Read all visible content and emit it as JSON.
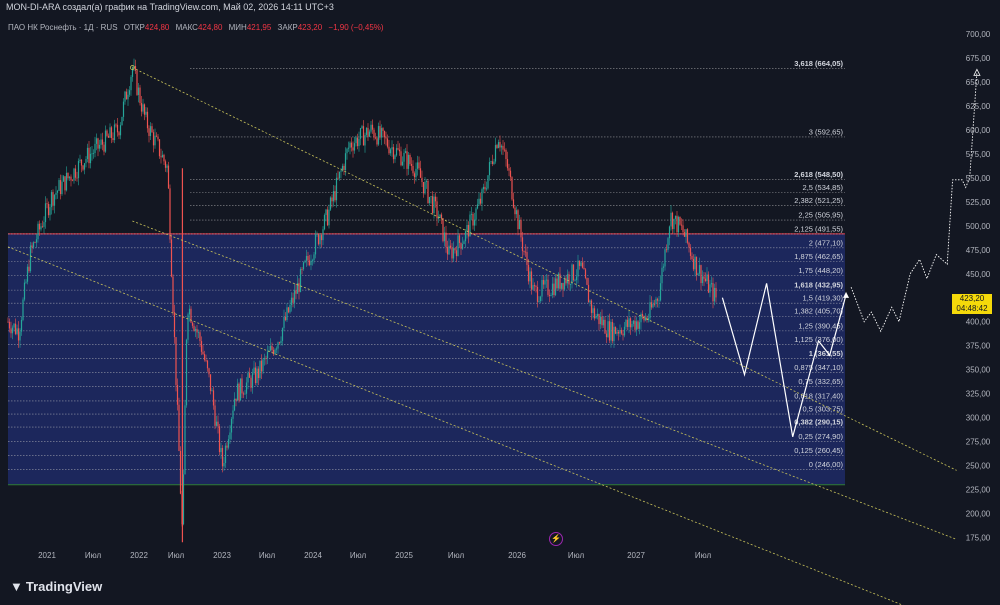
{
  "header": {
    "title": "MON-DI-ARA создал(а) график на TradingView.com, Май 02, 2026 14:11 UTC+3"
  },
  "legend": {
    "symbol": "ПАО НК Роснефть · 1Д · RUS",
    "open_label": "ОТКР",
    "open_value": "424,80",
    "high_label": "МАКС",
    "high_value": "424,80",
    "low_label": "МИН",
    "low_value": "421,95",
    "close_label": "ЗАКР",
    "close_value": "423,20",
    "change": "−1,90 (−0,45%)"
  },
  "price_tag": {
    "price": "423,20",
    "countdown": "04:48:42"
  },
  "footer": {
    "logo_text": "TradingView",
    "logo_icon": "tradingview-logo-icon"
  },
  "colors": {
    "background": "#131722",
    "fib_zone": "#1e2a66",
    "up": "#26a69a",
    "down": "#ef5350",
    "channel": "#c9c35a",
    "projection": "#ffffff",
    "price_tag": "#f5d90a",
    "top_line": "#f23645",
    "bottom_line": "#2e7d32"
  },
  "chart_data": {
    "type": "candlestick",
    "title": "ПАО НК Роснефть · 1Д · RUS",
    "y_axis": {
      "ylim": [
        170,
        710
      ],
      "ticks": [
        "175,00",
        "200,00",
        "225,00",
        "250,00",
        "275,00",
        "300,00",
        "325,00",
        "350,00",
        "375,00",
        "400,00",
        "425,00",
        "450,00",
        "475,00",
        "500,00",
        "525,00",
        "550,00",
        "575,00",
        "600,00",
        "625,00",
        "650,00",
        "675,00",
        "700,00"
      ]
    },
    "x_axis": {
      "ticks": [
        "2021",
        "Июл",
        "2022",
        "Июл",
        "2023",
        "Июл",
        "2024",
        "Июл",
        "2025",
        "Июл",
        "2026",
        "Июл",
        "2027",
        "Июл"
      ]
    },
    "grid": false,
    "price_path": [
      [
        "2020-11-01",
        400
      ],
      [
        "2020-12-01",
        390
      ],
      [
        "2021-01-01",
        470
      ],
      [
        "2021-03-01",
        530
      ],
      [
        "2021-06-01",
        570
      ],
      [
        "2021-09-01",
        600
      ],
      [
        "2021-10-10",
        665
      ],
      [
        "2021-11-15",
        610
      ],
      [
        "2022-01-15",
        560
      ],
      [
        "2022-02-25",
        175
      ],
      [
        "2022-03-10",
        420
      ],
      [
        "2022-04-15",
        380
      ],
      [
        "2022-05-15",
        330
      ],
      [
        "2022-06-15",
        250
      ],
      [
        "2022-07-20",
        325
      ],
      [
        "2022-09-20",
        345
      ],
      [
        "2022-11-20",
        385
      ],
      [
        "2023-02-01",
        460
      ],
      [
        "2023-04-01",
        510
      ],
      [
        "2023-06-01",
        585
      ],
      [
        "2023-08-01",
        600
      ],
      [
        "2023-10-01",
        580
      ],
      [
        "2023-12-01",
        560
      ],
      [
        "2024-02-01",
        510
      ],
      [
        "2024-03-01",
        470
      ],
      [
        "2024-04-15",
        490
      ],
      [
        "2024-06-01",
        530
      ],
      [
        "2024-07-15",
        595
      ],
      [
        "2024-08-10",
        560
      ],
      [
        "2024-09-20",
        480
      ],
      [
        "2024-10-20",
        430
      ],
      [
        "2024-12-01",
        435
      ],
      [
        "2025-01-15",
        445
      ],
      [
        "2025-03-01",
        455
      ],
      [
        "2025-04-01",
        410
      ],
      [
        "2025-05-20",
        390
      ],
      [
        "2025-07-01",
        395
      ],
      [
        "2025-09-01",
        405
      ],
      [
        "2025-10-01",
        430
      ],
      [
        "2025-11-01",
        510
      ],
      [
        "2025-12-05",
        495
      ],
      [
        "2026-01-10",
        460
      ],
      [
        "2026-02-10",
        440
      ],
      [
        "2026-03-10",
        423
      ]
    ],
    "current_price": 423.2,
    "fibonacci_extension": {
      "levels": [
        {
          "ratio": "0",
          "price": 246.0,
          "label": "0 (246,00)",
          "bold": false
        },
        {
          "ratio": "0,125",
          "price": 260.45,
          "label": "0,125 (260,45)",
          "bold": false
        },
        {
          "ratio": "0,25",
          "price": 274.9,
          "label": "0,25 (274,90)",
          "bold": false
        },
        {
          "ratio": "0,382",
          "price": 290.15,
          "label": "0,382 (290,15)",
          "bold": true
        },
        {
          "ratio": "0,5",
          "price": 303.75,
          "label": "0,5 (303,75)",
          "bold": false
        },
        {
          "ratio": "0,618",
          "price": 317.4,
          "label": "0,618 (317,40)",
          "bold": false
        },
        {
          "ratio": "0,75",
          "price": 332.65,
          "label": "0,75 (332,65)",
          "bold": false
        },
        {
          "ratio": "0,875",
          "price": 347.1,
          "label": "0,875 (347,10)",
          "bold": false
        },
        {
          "ratio": "1",
          "price": 361.55,
          "label": "1 (361,55)",
          "bold": true
        },
        {
          "ratio": "1,125",
          "price": 376.0,
          "label": "1,125 (376,00)",
          "bold": false
        },
        {
          "ratio": "1,25",
          "price": 390.45,
          "label": "1,25 (390,45)",
          "bold": false
        },
        {
          "ratio": "1,382",
          "price": 405.7,
          "label": "1,382 (405,70)",
          "bold": false
        },
        {
          "ratio": "1,5",
          "price": 419.3,
          "label": "1,5 (419,30)",
          "bold": false
        },
        {
          "ratio": "1,618",
          "price": 432.95,
          "label": "1,618 (432,95)",
          "bold": true
        },
        {
          "ratio": "1,75",
          "price": 448.2,
          "label": "1,75 (448,20)",
          "bold": false
        },
        {
          "ratio": "1,875",
          "price": 462.65,
          "label": "1,875 (462,65)",
          "bold": false
        },
        {
          "ratio": "2",
          "price": 477.1,
          "label": "2 (477,10)",
          "bold": false
        },
        {
          "ratio": "2,125",
          "price": 491.55,
          "label": "2,125 (491,55)",
          "bold": false
        },
        {
          "ratio": "2,25",
          "price": 505.95,
          "label": "2,25 (505,95)",
          "bold": false
        },
        {
          "ratio": "2,382",
          "price": 521.25,
          "label": "2,382 (521,25)",
          "bold": false
        },
        {
          "ratio": "2,5",
          "price": 534.85,
          "label": "2,5 (534,85)",
          "bold": false
        },
        {
          "ratio": "2,618",
          "price": 548.5,
          "label": "2,618 (548,50)",
          "bold": true
        },
        {
          "ratio": "3",
          "price": 592.65,
          "label": "3 (592,65)",
          "bold": false
        },
        {
          "ratio": "3,618",
          "price": 664.05,
          "label": "3,618 (664,05)",
          "bold": true
        }
      ],
      "zone_top_price": 491.55,
      "zone_bottom_price": 230
    },
    "channel_lines": [
      {
        "from": [
          "2021-10-10",
          665
        ],
        "to": [
          "2027-12-31",
          245
        ]
      },
      {
        "from": [
          "2021-10-10",
          505
        ],
        "to": [
          "2027-12-31",
          173
        ]
      },
      {
        "from": [
          "2020-11-01",
          478
        ],
        "to": [
          "2027-12-31",
          82
        ]
      }
    ],
    "projection_solid": [
      [
        "2026-03-25",
        425
      ],
      [
        "2026-05-25",
        345
      ],
      [
        "2026-07-25",
        440
      ],
      [
        "2026-10-05",
        280
      ],
      [
        "2026-12-15",
        380
      ],
      [
        "2027-01-15",
        365
      ],
      [
        "2027-03-01",
        428
      ]
    ],
    "projection_dotted": [
      [
        "2027-03-15",
        436
      ],
      [
        "2027-04-20",
        400
      ],
      [
        "2027-05-10",
        410
      ],
      [
        "2027-06-05",
        390
      ],
      [
        "2027-07-05",
        415
      ],
      [
        "2027-07-25",
        400
      ],
      [
        "2027-08-25",
        450
      ],
      [
        "2027-09-20",
        465
      ],
      [
        "2027-10-10",
        445
      ],
      [
        "2027-11-05",
        470
      ],
      [
        "2027-12-05",
        460
      ],
      [
        "2027-12-20",
        548
      ],
      [
        "2028-01-15",
        548
      ],
      [
        "2028-01-25",
        540
      ],
      [
        "2028-02-05",
        550
      ],
      [
        "2028-02-25",
        660
      ]
    ]
  }
}
